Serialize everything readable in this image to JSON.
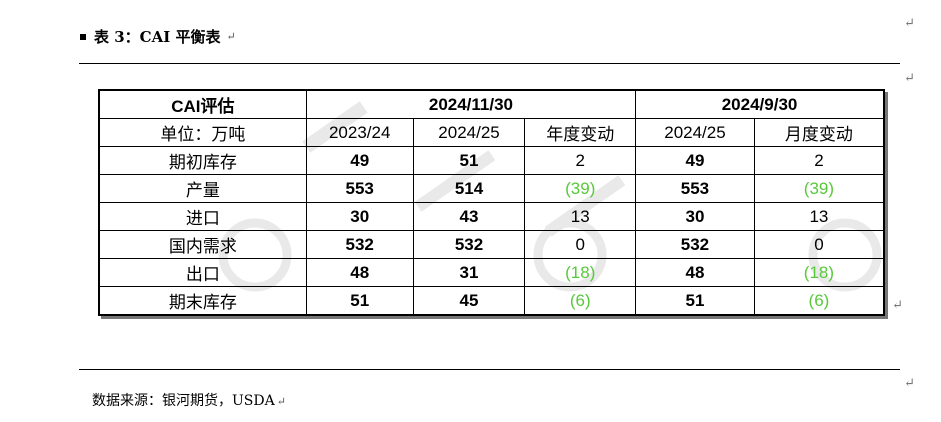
{
  "caption": {
    "text": "表 3：CAI 平衡表"
  },
  "table": {
    "header_row": {
      "label": "CAI评估",
      "group_1": "2024/11/30",
      "group_2": "2024/9/30"
    },
    "sub_row": {
      "unit": "单位：万吨",
      "col_1": "2023/24",
      "col_2": "2024/25",
      "col_3": "年度变动",
      "col_4": "2024/25",
      "col_5": "月度变动"
    },
    "rows": [
      {
        "label": "期初库存",
        "v1": "49",
        "v2": "51",
        "v3": "2",
        "v4": "49",
        "v5": "2"
      },
      {
        "label": "产量",
        "v1": "553",
        "v2": "514",
        "v3": "(39)",
        "v4": "553",
        "v5": "(39)"
      },
      {
        "label": "进口",
        "v1": "30",
        "v2": "43",
        "v3": "13",
        "v4": "30",
        "v5": "13"
      },
      {
        "label": "国内需求",
        "v1": "532",
        "v2": "532",
        "v3": "0",
        "v4": "532",
        "v5": "0"
      },
      {
        "label": "出口",
        "v1": "48",
        "v2": "31",
        "v3": "(18)",
        "v4": "48",
        "v5": "(18)"
      },
      {
        "label": "期末库存",
        "v1": "51",
        "v2": "45",
        "v3": "(6)",
        "v4": "51",
        "v5": "(6)"
      }
    ]
  },
  "source": {
    "text": "数据来源：银河期货，USDA"
  },
  "colors": {
    "negative": "#58c93a",
    "watermark": "#d9d9d9"
  },
  "icons": {
    "paragraph_mark": "return-arrow-icon",
    "bullet": "square-bullet-icon"
  }
}
